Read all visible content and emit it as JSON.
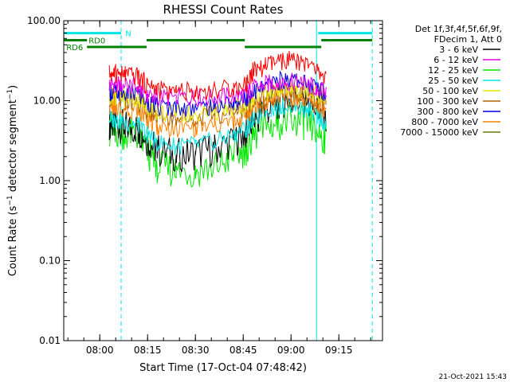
{
  "chart_data": {
    "type": "line",
    "title": "RHESSI Count Rates",
    "xlabel": "Start Time (17-Oct-04 07:48:42)",
    "ylabel_main": "Count Rate (s",
    "ylabel_sup": "−1",
    "ylabel_tail": " detector segment",
    "ylabel_sup2": "−1",
    "ylabel_close": ")",
    "y_scale": "log",
    "ylim": [
      0.01,
      100
    ],
    "xlim": [
      "07:48:42",
      "09:28:42"
    ],
    "x_ticks": [
      {
        "t": "08:00",
        "label": "08:00"
      },
      {
        "t": "08:15",
        "label": "08:15"
      },
      {
        "t": "08:30",
        "label": "08:30"
      },
      {
        "t": "08:45",
        "label": "08:45"
      },
      {
        "t": "09:00",
        "label": "09:00"
      },
      {
        "t": "09:15",
        "label": "09:15"
      }
    ],
    "y_ticks": [
      {
        "v": 100,
        "label": "100.00"
      },
      {
        "v": 10,
        "label": "10.00"
      },
      {
        "v": 1,
        "label": "1.00"
      },
      {
        "v": 0.1,
        "label": "0.10"
      },
      {
        "v": 0.01,
        "label": "0.01"
      }
    ],
    "legend": {
      "header1": "Det 1f,3f,4f,5f,6f,9f,",
      "header2": "FDecim 1, Att 0",
      "placement": "right"
    },
    "x": [
      "08:03",
      "08:05",
      "08:08",
      "08:12",
      "08:15",
      "08:18",
      "08:24",
      "08:30",
      "08:36",
      "08:42",
      "08:46",
      "08:48",
      "08:52",
      "08:56",
      "09:00",
      "09:04",
      "09:08",
      "09:11"
    ],
    "series": [
      {
        "name": "3 - 6 keV",
        "color": "#000000",
        "values": [
          5.3,
          5.0,
          4.7,
          4.5,
          3.2,
          2.4,
          2.1,
          2.2,
          2.5,
          3.2,
          4.0,
          5.5,
          7.5,
          9.5,
          10.5,
          9.5,
          7.5,
          5.0
        ]
      },
      {
        "name": "6 - 12 keV",
        "color": "#e600e6",
        "values": [
          16.0,
          16.0,
          15.5,
          15.0,
          12.0,
          11.0,
          11.0,
          11.0,
          11.0,
          11.5,
          12.0,
          14.0,
          16.0,
          17.0,
          17.0,
          16.0,
          14.5,
          12.5
        ]
      },
      {
        "name": "12 - 25 keV",
        "color": "#00e600",
        "values": [
          4.3,
          4.1,
          3.9,
          3.7,
          2.3,
          1.5,
          1.3,
          1.3,
          1.5,
          2.0,
          2.5,
          3.5,
          4.5,
          5.3,
          5.7,
          5.3,
          4.3,
          3.3
        ]
      },
      {
        "name": "25 - 50 keV",
        "color": "#00e6e6",
        "values": [
          6.0,
          5.7,
          5.4,
          5.1,
          3.8,
          3.0,
          2.7,
          2.8,
          3.1,
          3.8,
          4.5,
          6.0,
          7.5,
          8.5,
          8.7,
          8.0,
          6.8,
          5.0
        ]
      },
      {
        "name": "50 - 100 keV",
        "color": "#e6e600",
        "values": [
          11.5,
          11.3,
          11.0,
          10.5,
          8.3,
          7.2,
          6.8,
          6.9,
          7.3,
          8.0,
          8.8,
          10.5,
          12.5,
          14.0,
          14.5,
          13.5,
          12.0,
          10.5
        ]
      },
      {
        "name": "100 - 300 keV",
        "color": "#b06000",
        "values": [
          10.5,
          10.3,
          10.0,
          9.6,
          7.5,
          6.5,
          6.1,
          6.2,
          6.6,
          7.3,
          8.0,
          9.6,
          11.5,
          12.8,
          13.2,
          12.3,
          10.8,
          9.5
        ]
      },
      {
        "name": "300 - 800 keV",
        "color": "#0000e6",
        "values": [
          13.0,
          12.8,
          12.3,
          12.0,
          9.6,
          8.4,
          8.0,
          8.1,
          8.6,
          9.5,
          10.5,
          12.8,
          15.0,
          17.5,
          18.5,
          17.0,
          14.5,
          12.5
        ]
      },
      {
        "name": "800 - 7000 keV",
        "color": "#ff8000",
        "values": [
          8.5,
          8.3,
          8.0,
          7.7,
          5.8,
          4.8,
          4.5,
          4.6,
          4.9,
          5.5,
          6.3,
          7.8,
          9.3,
          10.5,
          11.0,
          10.2,
          8.8,
          7.3
        ]
      },
      {
        "name": "7000 - 15000 keV",
        "color": "#608000",
        "values": [
          null,
          null,
          null,
          null,
          null,
          null,
          null,
          null,
          null,
          null,
          null,
          null,
          null,
          null,
          null,
          null,
          null,
          null
        ]
      },
      {
        "name": "",
        "color": "#ff0000",
        "values": [
          22.0,
          22.0,
          21.0,
          20.0,
          15.5,
          13.5,
          13.0,
          13.0,
          13.5,
          14.5,
          16.0,
          23.0,
          27.0,
          31.0,
          32.0,
          29.0,
          24.0,
          19.0
        ]
      }
    ],
    "markers": {
      "label_N": "N",
      "label_RD0": "RD0",
      "label_RD6": "RD6",
      "cyan_bars": [
        {
          "start": "07:48:42",
          "end": "08:06:42",
          "level": 70
        },
        {
          "start": "09:08:30",
          "end": "09:25:30",
          "level": 70
        }
      ],
      "green_bars": [
        {
          "start": "07:48:42",
          "end": "07:56:00",
          "level": 57
        },
        {
          "start": "08:14:42",
          "end": "08:45:30",
          "level": 57
        },
        {
          "start": "09:09:30",
          "end": "09:25:30",
          "level": 57
        },
        {
          "start": "07:56:00",
          "end": "08:14:42",
          "level": 47
        },
        {
          "start": "08:45:30",
          "end": "09:09:30",
          "level": 47
        }
      ],
      "solid_verticals": [
        "07:48:42",
        "09:08:00"
      ],
      "dashed_verticals": [
        "08:06:42",
        "09:25:30"
      ]
    }
  },
  "footer": {
    "date": "21-Oct-2021 15:43"
  }
}
